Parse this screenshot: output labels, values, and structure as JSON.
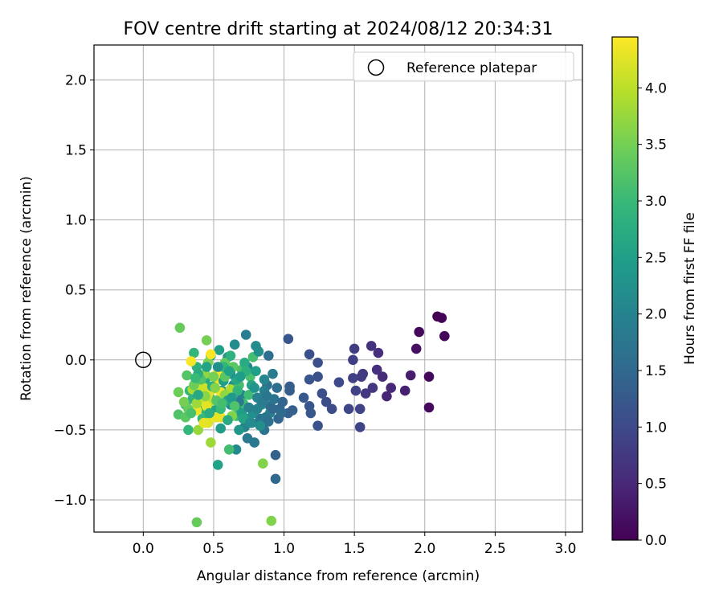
{
  "chart_data": {
    "type": "scatter",
    "title": "FOV centre drift starting at 2024/08/12 20:34:31",
    "xlabel": "Angular distance from reference (arcmin)",
    "ylabel": "Rotation from reference (arcmin)",
    "xlim": [
      -0.35,
      3.12
    ],
    "ylim": [
      -1.23,
      2.25
    ],
    "xticks": [
      0.0,
      0.5,
      1.0,
      1.5,
      2.0,
      2.5,
      3.0
    ],
    "xtick_labels": [
      "0.0",
      "0.5",
      "1.0",
      "1.5",
      "2.0",
      "2.5",
      "3.0"
    ],
    "yticks": [
      -1.0,
      -0.5,
      0.0,
      0.5,
      1.0,
      1.5,
      2.0
    ],
    "ytick_labels": [
      "−1.0",
      "−0.5",
      "0.0",
      "0.5",
      "1.0",
      "1.5",
      "2.0"
    ],
    "grid": true,
    "legend": {
      "placement": "top-right",
      "entries": [
        "Reference platepar"
      ]
    },
    "reference_point": {
      "x": 0.0,
      "y": 0.0,
      "marker": "hollow-circle"
    },
    "colorbar": {
      "label": "Hours from first FF file",
      "colormap": "viridis",
      "range": [
        0.0,
        4.45
      ],
      "ticks": [
        0.0,
        0.5,
        1.0,
        1.5,
        2.0,
        2.5,
        3.0,
        3.5,
        4.0
      ],
      "tick_labels": [
        "0.0",
        "0.5",
        "1.0",
        "1.5",
        "2.0",
        "2.5",
        "3.0",
        "3.5",
        "4.0"
      ]
    },
    "colormap_stops": [
      "#440154",
      "#482878",
      "#3e4989",
      "#31688e",
      "#26828e",
      "#1f9e89",
      "#35b779",
      "#6ece58",
      "#b5de2b",
      "#fde725"
    ],
    "points": [
      [
        2.09,
        0.31,
        0.0
      ],
      [
        2.12,
        0.3,
        0.05
      ],
      [
        2.14,
        0.17,
        0.08
      ],
      [
        1.96,
        0.2,
        0.1
      ],
      [
        1.94,
        0.08,
        0.2
      ],
      [
        2.03,
        -0.12,
        0.1
      ],
      [
        2.03,
        -0.34,
        0.12
      ],
      [
        1.9,
        -0.11,
        0.35
      ],
      [
        1.86,
        -0.22,
        0.4
      ],
      [
        1.76,
        -0.2,
        0.5
      ],
      [
        1.73,
        -0.26,
        0.45
      ],
      [
        1.7,
        -0.12,
        0.55
      ],
      [
        1.67,
        0.05,
        0.6
      ],
      [
        1.66,
        -0.07,
        0.6
      ],
      [
        1.62,
        0.1,
        0.65
      ],
      [
        1.63,
        -0.2,
        0.7
      ],
      [
        1.58,
        -0.24,
        0.7
      ],
      [
        1.56,
        -0.1,
        0.75
      ],
      [
        1.55,
        -0.12,
        0.78
      ],
      [
        1.5,
        0.08,
        0.8
      ],
      [
        1.49,
        0.0,
        0.82
      ],
      [
        1.49,
        -0.13,
        0.85
      ],
      [
        1.51,
        -0.22,
        0.88
      ],
      [
        1.54,
        -0.35,
        0.9
      ],
      [
        1.54,
        -0.48,
        0.92
      ],
      [
        1.46,
        -0.35,
        0.95
      ],
      [
        1.39,
        -0.16,
        1.0
      ],
      [
        1.34,
        -0.35,
        1.02
      ],
      [
        1.3,
        -0.3,
        1.05
      ],
      [
        1.27,
        -0.24,
        1.08
      ],
      [
        1.24,
        -0.02,
        1.1
      ],
      [
        1.24,
        -0.12,
        1.12
      ],
      [
        1.24,
        -0.47,
        1.15
      ],
      [
        1.18,
        0.04,
        1.1
      ],
      [
        1.18,
        -0.14,
        1.18
      ],
      [
        1.18,
        -0.33,
        1.2
      ],
      [
        1.19,
        -0.38,
        1.22
      ],
      [
        1.14,
        -0.27,
        1.25
      ],
      [
        1.03,
        0.15,
        1.2
      ],
      [
        1.04,
        -0.19,
        1.3
      ],
      [
        1.04,
        -0.22,
        1.32
      ],
      [
        1.06,
        -0.36,
        1.35
      ],
      [
        1.03,
        -0.38,
        1.35
      ],
      [
        0.94,
        -0.68,
        1.4
      ],
      [
        0.96,
        -0.42,
        1.45
      ],
      [
        0.97,
        -0.35,
        1.45
      ],
      [
        0.94,
        -0.85,
        1.5
      ],
      [
        0.9,
        -0.33,
        1.55
      ],
      [
        0.89,
        0.03,
        1.6
      ],
      [
        0.88,
        -0.18,
        1.65
      ],
      [
        0.85,
        -0.28,
        1.7
      ],
      [
        0.86,
        -0.5,
        1.7
      ],
      [
        0.83,
        -0.42,
        1.75
      ],
      [
        0.79,
        -0.59,
        1.8
      ],
      [
        0.77,
        -0.45,
        1.85
      ],
      [
        0.73,
        0.18,
        1.9
      ],
      [
        0.74,
        -0.05,
        1.95
      ],
      [
        0.7,
        -0.25,
        2.0
      ],
      [
        0.72,
        -0.48,
        2.0
      ],
      [
        0.69,
        -0.36,
        2.05
      ],
      [
        0.66,
        -0.64,
        2.1
      ],
      [
        0.65,
        0.11,
        2.15
      ],
      [
        0.64,
        -0.18,
        2.2
      ],
      [
        0.62,
        -0.32,
        2.25
      ],
      [
        0.6,
        0.02,
        2.3
      ],
      [
        0.58,
        -0.1,
        2.35
      ],
      [
        0.56,
        -0.22,
        2.4
      ],
      [
        0.55,
        -0.49,
        2.45
      ],
      [
        0.54,
        0.07,
        2.5
      ],
      [
        0.53,
        -0.75,
        2.55
      ],
      [
        0.51,
        -0.36,
        2.55
      ],
      [
        0.48,
        0.03,
        2.6
      ],
      [
        0.48,
        -0.28,
        2.65
      ],
      [
        0.44,
        -0.15,
        2.7
      ],
      [
        0.4,
        -0.2,
        2.75
      ],
      [
        0.38,
        -0.05,
        2.8
      ],
      [
        0.35,
        -0.28,
        2.85
      ],
      [
        0.33,
        -0.22,
        2.9
      ],
      [
        0.32,
        -0.5,
        2.95
      ],
      [
        0.3,
        -0.32,
        3.0
      ],
      [
        0.36,
        0.05,
        2.95
      ],
      [
        0.43,
        -0.35,
        2.95
      ],
      [
        0.42,
        -0.42,
        3.0
      ],
      [
        0.66,
        -0.4,
        3.0
      ],
      [
        0.71,
        -0.31,
        3.05
      ],
      [
        0.61,
        -0.64,
        3.1
      ],
      [
        0.78,
        0.02,
        3.1
      ],
      [
        0.76,
        -0.12,
        3.15
      ],
      [
        0.25,
        -0.39,
        3.2
      ],
      [
        0.31,
        -0.11,
        3.25
      ],
      [
        0.3,
        -0.41,
        3.3
      ],
      [
        0.26,
        0.23,
        3.4
      ],
      [
        0.25,
        -0.23,
        3.45
      ],
      [
        0.45,
        0.14,
        3.5
      ],
      [
        0.46,
        -0.02,
        3.55
      ],
      [
        0.91,
        -1.15,
        3.6
      ],
      [
        0.38,
        -1.16,
        3.4
      ],
      [
        0.85,
        -0.74,
        3.6
      ],
      [
        0.39,
        -0.5,
        3.75
      ],
      [
        0.48,
        -0.59,
        3.8
      ],
      [
        0.52,
        -0.41,
        3.9
      ],
      [
        0.47,
        -0.3,
        4.0
      ],
      [
        0.43,
        -0.3,
        4.1
      ],
      [
        0.41,
        -0.19,
        4.15
      ],
      [
        0.46,
        -0.25,
        4.2
      ],
      [
        0.46,
        -0.45,
        4.25
      ],
      [
        0.43,
        -0.45,
        4.3
      ],
      [
        0.38,
        -0.36,
        4.35
      ],
      [
        0.34,
        -0.01,
        4.4
      ],
      [
        0.48,
        0.04,
        4.42
      ],
      [
        0.53,
        -0.09,
        4.4
      ],
      [
        0.53,
        -0.14,
        4.38
      ],
      [
        0.55,
        -0.23,
        4.35
      ],
      [
        0.51,
        -0.41,
        4.3
      ],
      [
        0.55,
        -0.41,
        4.3
      ],
      [
        0.48,
        -0.22,
        4.25
      ],
      [
        0.45,
        -0.33,
        4.28
      ],
      [
        0.4,
        -0.28,
        4.2
      ],
      [
        0.43,
        -0.2,
        4.1
      ],
      [
        0.54,
        -0.05,
        4.05
      ],
      [
        0.35,
        -0.21,
        3.9
      ],
      [
        0.38,
        -0.31,
        3.8
      ],
      [
        0.44,
        -0.1,
        3.7
      ],
      [
        0.62,
        -0.21,
        3.9
      ],
      [
        0.58,
        -0.25,
        3.7
      ],
      [
        0.63,
        -0.4,
        3.6
      ],
      [
        0.5,
        -0.12,
        3.5
      ],
      [
        0.36,
        -0.18,
        3.45
      ],
      [
        0.32,
        -0.35,
        3.4
      ],
      [
        0.58,
        -0.02,
        3.35
      ],
      [
        0.64,
        -0.05,
        3.3
      ],
      [
        0.41,
        -0.14,
        3.2
      ],
      [
        0.52,
        -0.29,
        3.25
      ],
      [
        0.7,
        -0.07,
        3.15
      ],
      [
        0.68,
        -0.18,
        3.1
      ],
      [
        0.75,
        -0.25,
        3.05
      ],
      [
        0.55,
        -0.35,
        3.0
      ],
      [
        0.57,
        -0.05,
        2.9
      ],
      [
        0.62,
        0.03,
        2.85
      ],
      [
        0.49,
        -0.19,
        2.8
      ],
      [
        0.39,
        -0.1,
        2.75
      ],
      [
        0.72,
        -0.02,
        2.7
      ],
      [
        0.66,
        -0.14,
        2.65
      ],
      [
        0.6,
        -0.29,
        2.6
      ],
      [
        0.45,
        -0.05,
        2.55
      ],
      [
        0.8,
        -0.08,
        2.5
      ],
      [
        0.7,
        -0.38,
        2.45
      ],
      [
        0.74,
        -0.42,
        2.4
      ],
      [
        0.68,
        -0.5,
        2.35
      ],
      [
        0.62,
        -0.1,
        2.3
      ],
      [
        0.82,
        0.06,
        2.25
      ],
      [
        0.78,
        -0.38,
        2.2
      ],
      [
        0.8,
        0.1,
        2.15
      ],
      [
        0.84,
        -0.32,
        2.1
      ],
      [
        0.86,
        -0.14,
        2.05
      ],
      [
        0.9,
        -0.38,
        2.0
      ],
      [
        0.81,
        -0.27,
        1.95
      ],
      [
        0.86,
        -0.22,
        1.9
      ],
      [
        0.92,
        -0.1,
        1.85
      ],
      [
        0.74,
        -0.56,
        1.8
      ],
      [
        0.87,
        -0.41,
        1.75
      ],
      [
        0.93,
        -0.28,
        1.7
      ],
      [
        0.89,
        -0.44,
        1.65
      ],
      [
        0.95,
        -0.2,
        1.6
      ],
      [
        0.98,
        -0.38,
        1.55
      ],
      [
        0.92,
        -0.35,
        1.5
      ],
      [
        0.99,
        -0.3,
        1.45
      ],
      [
        0.68,
        -0.3,
        1.8
      ],
      [
        0.57,
        -0.15,
        2.5
      ],
      [
        0.6,
        -0.43,
        2.7
      ],
      [
        0.77,
        -0.18,
        2.6
      ],
      [
        0.73,
        -0.08,
        2.8
      ],
      [
        0.67,
        -0.22,
        2.9
      ],
      [
        0.56,
        -0.31,
        3.1
      ],
      [
        0.63,
        -0.27,
        2.4
      ],
      [
        0.79,
        -0.2,
        2.3
      ],
      [
        0.83,
        -0.47,
        2.2
      ],
      [
        0.71,
        -0.42,
        2.6
      ],
      [
        0.65,
        -0.33,
        3.2
      ],
      [
        0.58,
        -0.12,
        3.3
      ],
      [
        0.51,
        -0.2,
        3.6
      ],
      [
        0.44,
        -0.26,
        3.65
      ],
      [
        0.29,
        -0.3,
        3.5
      ],
      [
        0.34,
        -0.38,
        3.15
      ],
      [
        0.37,
        -0.13,
        3.0
      ],
      [
        0.39,
        -0.25,
        2.65
      ],
      [
        0.53,
        -0.05,
        2.2
      ],
      [
        0.75,
        -0.34,
        1.95
      ],
      [
        0.85,
        -0.3,
        1.85
      ],
      [
        0.69,
        -0.12,
        2.45
      ],
      [
        0.61,
        -0.08,
        2.55
      ],
      [
        0.47,
        -0.38,
        2.75
      ],
      [
        0.88,
        -0.26,
        1.75
      ],
      [
        0.81,
        -0.35,
        2.0
      ],
      [
        0.76,
        -0.45,
        2.15
      ]
    ]
  }
}
